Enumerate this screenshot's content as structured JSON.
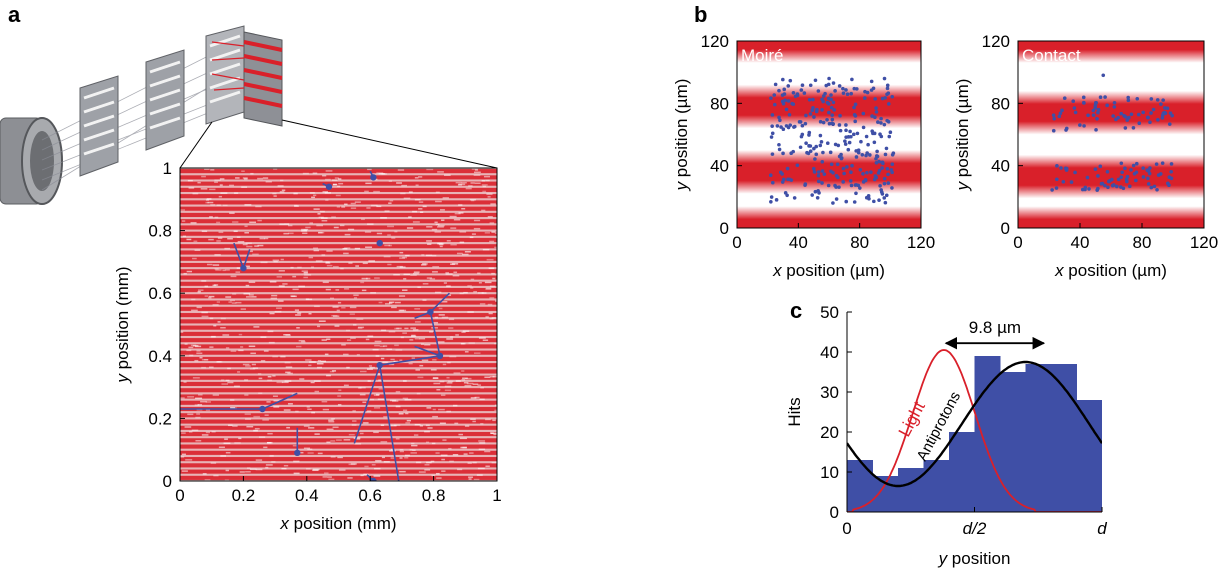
{
  "panel_labels": [
    "a",
    "b",
    "c"
  ],
  "colors": {
    "red": "#d9202a",
    "blue": "#3f4fa6",
    "black": "#000000",
    "stripe_white": "#ffffff"
  },
  "chart_data": [
    {
      "id": "a",
      "type": "scatter",
      "description_type": "detector image with stripes and track lines",
      "xlabel_var": "x",
      "xlabel_rest": " position (mm)",
      "ylabel_var": "y",
      "ylabel_rest": " position (mm)",
      "xlim": [
        0,
        1
      ],
      "ylim": [
        0,
        1
      ],
      "xticks": [
        0,
        0.2,
        0.4,
        0.6,
        0.8,
        1
      ],
      "xtick_labels": [
        "0",
        "0.2",
        "0.4",
        "0.6",
        "0.8",
        "1"
      ],
      "yticks": [
        0,
        0.2,
        0.4,
        0.6,
        0.8,
        1
      ],
      "ytick_labels": [
        "0",
        "0.2",
        "0.4",
        "0.6",
        "0.8",
        "1"
      ],
      "stripe_period": 0.02,
      "vertices": [
        {
          "x": 0.47,
          "y": 0.94
        },
        {
          "x": 0.61,
          "y": 0.97
        },
        {
          "x": 0.63,
          "y": 0.76
        },
        {
          "x": 0.2,
          "y": 0.68
        },
        {
          "x": 0.79,
          "y": 0.54
        },
        {
          "x": 0.82,
          "y": 0.4
        },
        {
          "x": 0.63,
          "y": 0.37
        },
        {
          "x": 0.26,
          "y": 0.23
        },
        {
          "x": 0.37,
          "y": 0.09
        },
        {
          "x": 0.61,
          "y": 0.0
        }
      ],
      "tracks": [
        [
          [
            0.45,
            0.95
          ],
          [
            0.47,
            0.94
          ]
        ],
        [
          [
            0.6,
            0.99
          ],
          [
            0.61,
            0.97
          ]
        ],
        [
          [
            0.17,
            0.76
          ],
          [
            0.2,
            0.68
          ]
        ],
        [
          [
            0.22,
            0.74
          ],
          [
            0.2,
            0.68
          ]
        ],
        [
          [
            0.74,
            0.52
          ],
          [
            0.79,
            0.54
          ]
        ],
        [
          [
            0.85,
            0.6
          ],
          [
            0.79,
            0.54
          ]
        ],
        [
          [
            0.79,
            0.54
          ],
          [
            0.82,
            0.4
          ]
        ],
        [
          [
            0.74,
            0.43
          ],
          [
            0.82,
            0.4
          ]
        ],
        [
          [
            0.63,
            0.37
          ],
          [
            0.55,
            0.12
          ]
        ],
        [
          [
            0.63,
            0.37
          ],
          [
            0.69,
            0.0
          ]
        ],
        [
          [
            0.63,
            0.37
          ],
          [
            0.82,
            0.4
          ]
        ],
        [
          [
            0.0,
            0.23
          ],
          [
            0.26,
            0.23
          ]
        ],
        [
          [
            0.26,
            0.23
          ],
          [
            0.37,
            0.28
          ]
        ],
        [
          [
            0.37,
            0.17
          ],
          [
            0.37,
            0.09
          ]
        ],
        [
          [
            0.59,
            0.02
          ],
          [
            0.61,
            0.0
          ]
        ]
      ]
    },
    {
      "id": "b1",
      "type": "scatter",
      "inset_label": "Moiré",
      "xlabel_var": "x",
      "xlabel_rest": " position (µm)",
      "ylabel_var": "y",
      "ylabel_rest": " position (µm)",
      "xlim": [
        0,
        120
      ],
      "ylim": [
        0,
        120
      ],
      "xticks": [
        0,
        40,
        80,
        120
      ],
      "xtick_labels": [
        "0",
        "40",
        "80",
        "120"
      ],
      "yticks": [
        0,
        40,
        80,
        120
      ],
      "ytick_labels": [
        "0",
        "40",
        "80",
        "120"
      ],
      "stripe_centers": [
        0,
        36,
        78,
        120
      ],
      "point_ranges": {
        "x": [
          22,
          102
        ],
        "y_bands": [
          [
            16,
            56
          ],
          [
            58,
            96
          ]
        ]
      },
      "n_points": 300
    },
    {
      "id": "b2",
      "type": "scatter",
      "inset_label": "Contact",
      "xlabel_var": "x",
      "xlabel_rest": " position (µm)",
      "ylabel_var": "y",
      "ylabel_rest": " position (µm)",
      "xlim": [
        0,
        120
      ],
      "ylim": [
        0,
        120
      ],
      "xticks": [
        0,
        40,
        80,
        120
      ],
      "xtick_labels": [
        "0",
        "40",
        "80",
        "120"
      ],
      "yticks": [
        0,
        40,
        80,
        120
      ],
      "ytick_labels": [
        "0",
        "40",
        "80",
        "120"
      ],
      "stripe_centers": [
        0,
        33,
        74,
        120
      ],
      "point_ranges": {
        "x": [
          22,
          100
        ],
        "y_bands": [
          [
            24,
            42
          ],
          [
            62,
            84
          ]
        ]
      },
      "n_points": 140,
      "extra_points": [
        {
          "x": 55,
          "y": 98
        }
      ]
    },
    {
      "id": "c",
      "type": "bar",
      "ylabel": "Hits",
      "xlabel_var": "y",
      "xlabel_rest": " position",
      "ylim": [
        0,
        50
      ],
      "yticks": [
        0,
        10,
        20,
        30,
        40,
        50
      ],
      "ytick_labels": [
        "0",
        "10",
        "20",
        "30",
        "40",
        "50"
      ],
      "xtick_labels": [
        "0",
        "d/2",
        "d"
      ],
      "bin_edges": [
        0,
        0.1,
        0.2,
        0.3,
        0.4,
        0.5,
        0.6,
        0.7,
        0.8,
        0.9,
        1.0
      ],
      "values": [
        13,
        9,
        11,
        13,
        20,
        39,
        35,
        37,
        37,
        28
      ],
      "curve_light_label": "Light",
      "curve_antiprotons_label": "Antiprotons",
      "annotation": "9.8 µm",
      "light_curve": {
        "peak_x": 0.38,
        "peak_y": 40.5,
        "width": 0.19
      },
      "antiproton_curve": {
        "mean": 22,
        "amp": 15.5,
        "phase_min_x": 0.2
      }
    }
  ]
}
